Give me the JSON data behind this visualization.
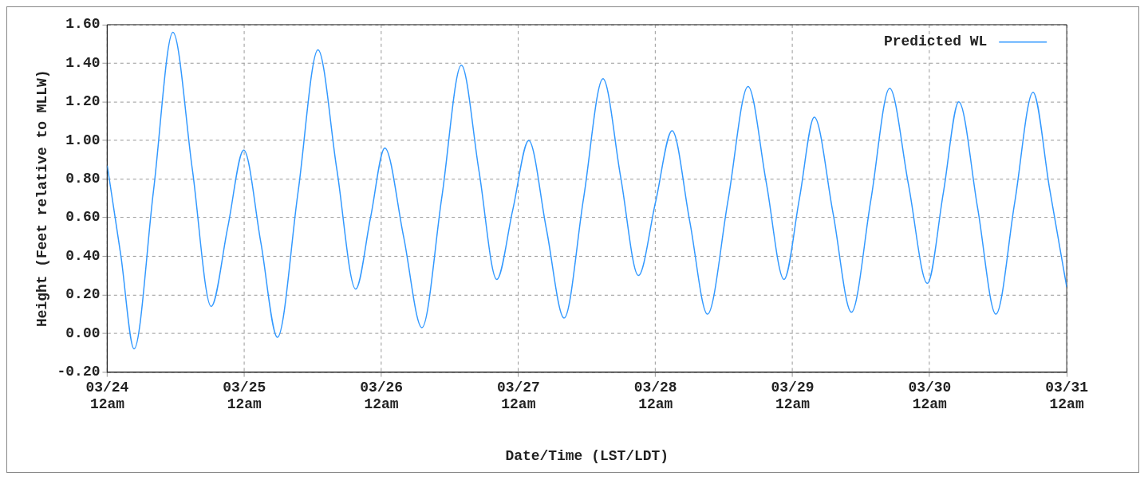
{
  "chart_data": {
    "type": "line",
    "xlabel": "Date/Time (LST/LDT)",
    "ylabel": "Height (Feet relative to MLLW)",
    "x": [
      "--03-24T00:00",
      "--03-24T02:24",
      "--03-24T04:42",
      "--03-24T08:06",
      "--03-24T11:30",
      "--03-24T14:54",
      "--03-24T18:12",
      "--03-24T21:06",
      "--03-24T23:54",
      "--03-25T02:54",
      "--03-25T05:48",
      "--03-25T09:24",
      "--03-25T12:54",
      "--03-25T16:12",
      "--03-25T19:30",
      "--03-25T22:06",
      "--03-26T00:36",
      "--03-26T03:54",
      "--03-26T07:06",
      "--03-26T10:36",
      "--03-26T14:00",
      "--03-26T17:06",
      "--03-26T20:12",
      "--03-26T23:00",
      "--03-27T01:48",
      "--03-27T04:54",
      "--03-27T08:00",
      "--03-27T11:24",
      "--03-27T14:48",
      "--03-27T17:54",
      "--03-27T21:00",
      "--03-28T00:00",
      "--03-28T02:54",
      "--03-28T06:00",
      "--03-28T09:06",
      "--03-28T12:42",
      "--03-28T16:12",
      "--03-28T19:24",
      "--03-28T22:30",
      "--03-29T01:12",
      "--03-29T03:48",
      "--03-29T07:06",
      "--03-29T10:18",
      "--03-29T13:42",
      "--03-29T17:00",
      "--03-29T20:18",
      "--03-29T23:36",
      "--03-30T02:24",
      "--03-30T05:06",
      "--03-30T08:24",
      "--03-30T11:36",
      "--03-30T14:54",
      "--03-30T18:06",
      "--03-30T21:00",
      "--03-31T00:00"
    ],
    "series": [
      {
        "name": "Predicted WL",
        "color": "#3399ff",
        "values": [
          0.87,
          0.4,
          -0.08,
          0.74,
          1.56,
          0.85,
          0.14,
          0.55,
          0.95,
          0.47,
          -0.02,
          0.73,
          1.47,
          0.85,
          0.23,
          0.6,
          0.96,
          0.5,
          0.03,
          0.71,
          1.39,
          0.84,
          0.28,
          0.64,
          1.0,
          0.54,
          0.08,
          0.7,
          1.32,
          0.81,
          0.3,
          0.68,
          1.05,
          0.58,
          0.1,
          0.69,
          1.28,
          0.78,
          0.28,
          0.7,
          1.12,
          0.62,
          0.11,
          0.69,
          1.27,
          0.77,
          0.26,
          0.73,
          1.2,
          0.65,
          0.1,
          0.68,
          1.25,
          0.75,
          0.24
        ]
      }
    ],
    "xlim": [
      "--03-24T00:00",
      "--03-31T00:00"
    ],
    "xticks": [
      {
        "value": "--03-24T00:00",
        "label": "03/24\n12am"
      },
      {
        "value": "--03-25T00:00",
        "label": "03/25\n12am"
      },
      {
        "value": "--03-26T00:00",
        "label": "03/26\n12am"
      },
      {
        "value": "--03-27T00:00",
        "label": "03/27\n12am"
      },
      {
        "value": "--03-28T00:00",
        "label": "03/28\n12am"
      },
      {
        "value": "--03-29T00:00",
        "label": "03/29\n12am"
      },
      {
        "value": "--03-30T00:00",
        "label": "03/30\n12am"
      },
      {
        "value": "--03-31T00:00",
        "label": "03/31\n12am"
      }
    ],
    "ylim": [
      -0.2,
      1.6
    ],
    "yticks": [
      {
        "value": -0.2,
        "label": "-0.20"
      },
      {
        "value": 0,
        "label": "0.00"
      },
      {
        "value": 0.2,
        "label": "0.20"
      },
      {
        "value": 0.4,
        "label": "0.40"
      },
      {
        "value": 0.6,
        "label": "0.60"
      },
      {
        "value": 0.8,
        "label": "0.80"
      },
      {
        "value": 1.0,
        "label": "1.00"
      },
      {
        "value": 1.2,
        "label": "1.20"
      },
      {
        "value": 1.4,
        "label": "1.40"
      },
      {
        "value": 1.6,
        "label": "1.60"
      }
    ],
    "grid": true,
    "legend": "top right",
    "marker": "none",
    "line_style": "solid"
  }
}
